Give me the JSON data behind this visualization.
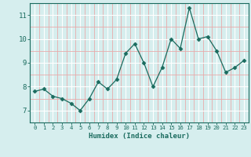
{
  "x": [
    0,
    1,
    2,
    3,
    4,
    5,
    6,
    7,
    8,
    9,
    10,
    11,
    12,
    13,
    14,
    15,
    16,
    17,
    18,
    19,
    20,
    21,
    22,
    23
  ],
  "y": [
    7.8,
    7.9,
    7.6,
    7.5,
    7.3,
    7.0,
    7.5,
    8.2,
    7.9,
    8.3,
    9.4,
    9.8,
    9.0,
    8.0,
    8.8,
    10.0,
    9.6,
    11.3,
    10.0,
    10.1,
    9.5,
    8.6,
    8.8,
    9.1
  ],
  "line_color": "#1a6b5e",
  "marker": "D",
  "marker_size": 2.5,
  "bg_color": "#d6eeee",
  "grid_major_color": "#ffffff",
  "grid_minor_color": "#e8aaaa",
  "xlabel": "Humidex (Indice chaleur)",
  "ylim": [
    6.5,
    11.5
  ],
  "xlim": [
    -0.5,
    23.5
  ],
  "yticks": [
    7,
    8,
    9,
    10,
    11
  ],
  "xticks": [
    0,
    1,
    2,
    3,
    4,
    5,
    6,
    7,
    8,
    9,
    10,
    11,
    12,
    13,
    14,
    15,
    16,
    17,
    18,
    19,
    20,
    21,
    22,
    23
  ],
  "label_color": "#1a6b5e",
  "tick_color": "#1a6b5e",
  "axis_color": "#1a6b5e"
}
